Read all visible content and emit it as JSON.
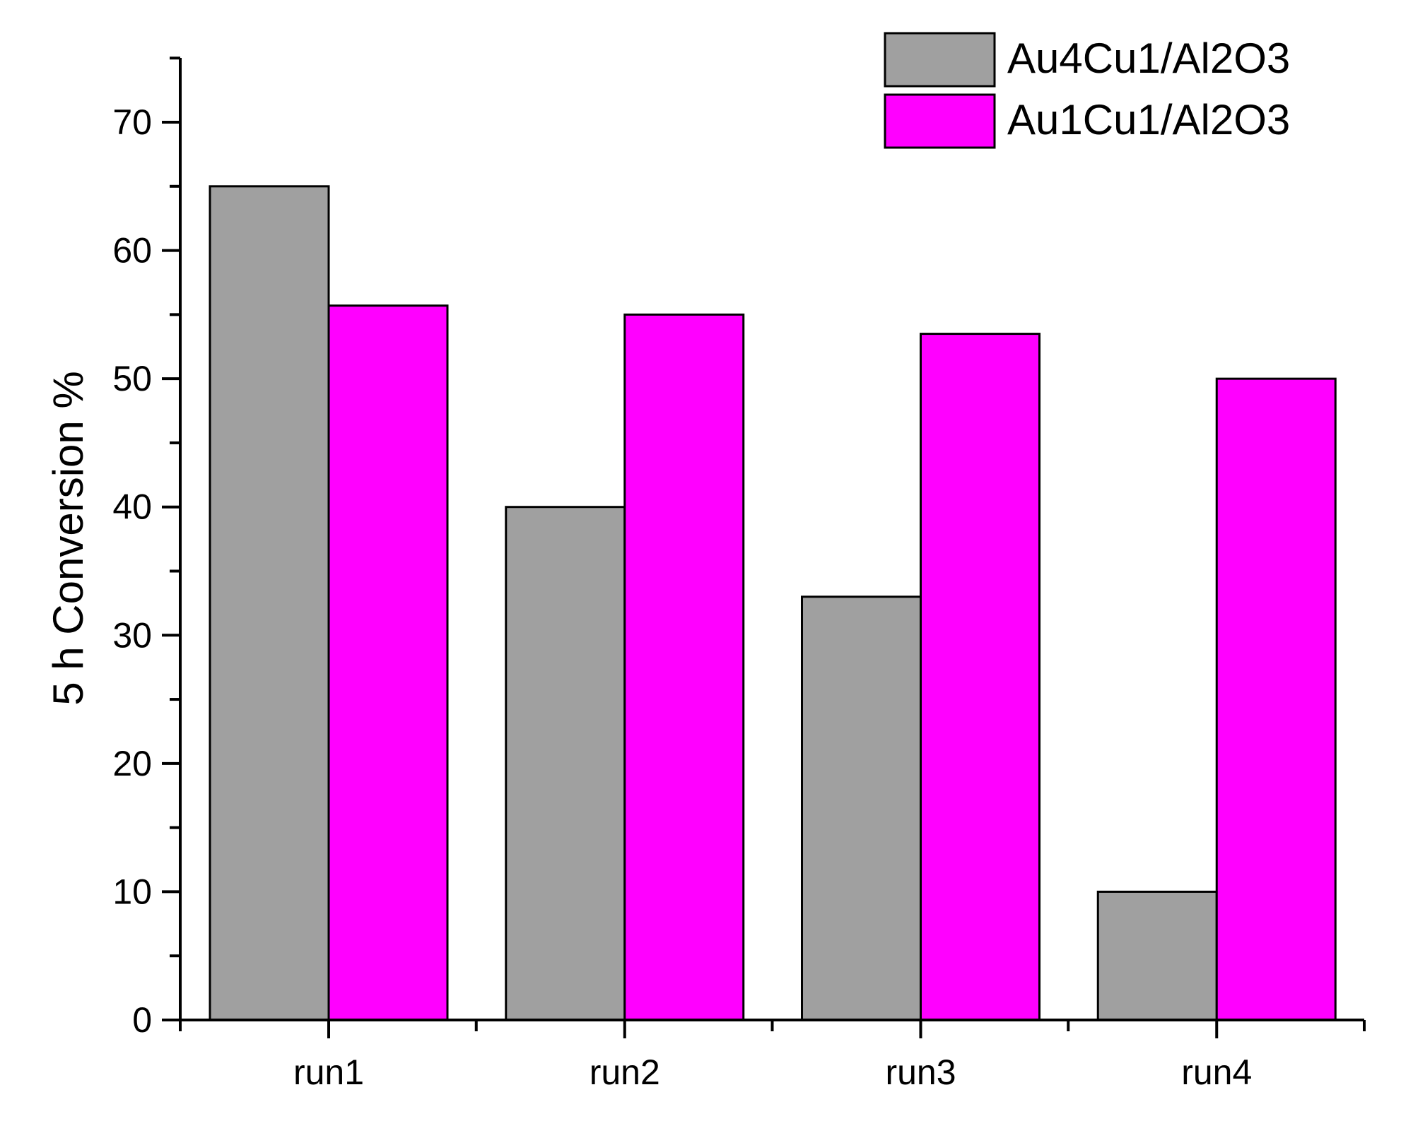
{
  "chart_data": {
    "type": "bar",
    "title": "",
    "xlabel": "",
    "ylabel": "5 h Conversion %",
    "categories": [
      "run1",
      "run2",
      "run3",
      "run4"
    ],
    "series": [
      {
        "name": "Au4Cu1/Al2O3",
        "values": [
          65,
          40,
          33,
          10
        ],
        "color": "#a0a0a0"
      },
      {
        "name": "Au1Cu1/Al2O3",
        "values": [
          55.7,
          55,
          53.5,
          50
        ],
        "color": "#ff00ff"
      }
    ],
    "ylim": [
      0,
      75
    ],
    "yticks": [
      0,
      10,
      20,
      30,
      40,
      50,
      60,
      70
    ],
    "grid": false,
    "legend_position": "top-right"
  }
}
